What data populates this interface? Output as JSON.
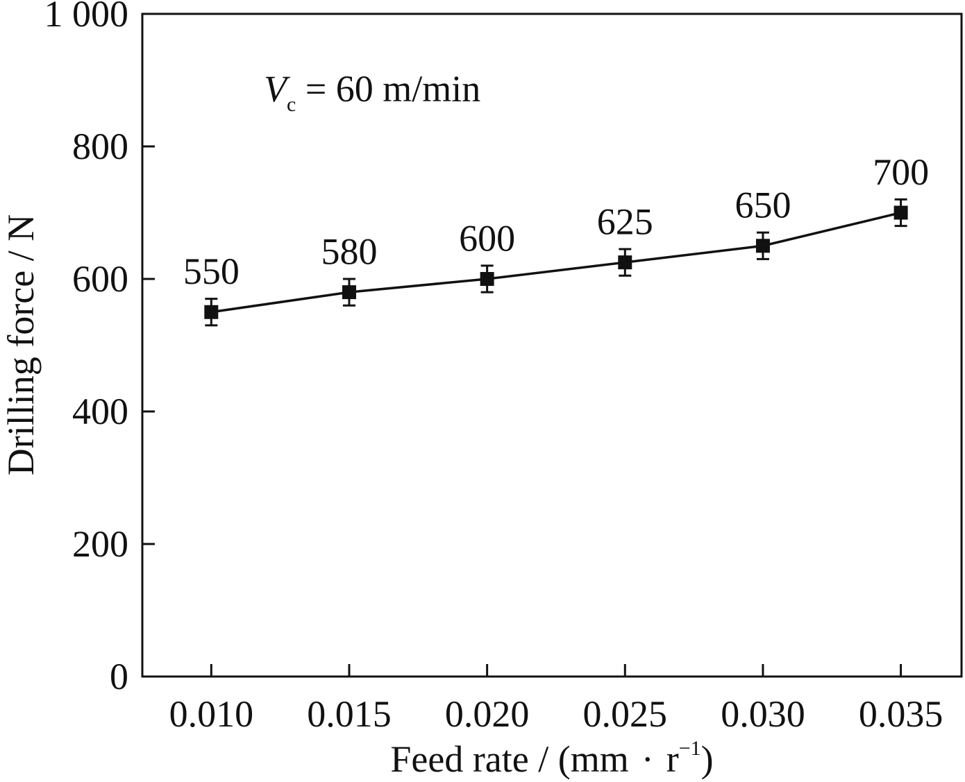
{
  "chart_data": {
    "type": "line",
    "x": [
      0.01,
      0.015,
      0.02,
      0.025,
      0.03,
      0.035
    ],
    "x_tick_labels": [
      "0.010",
      "0.015",
      "0.020",
      "0.025",
      "0.030",
      "0.035"
    ],
    "series": [
      {
        "values": [
          550,
          580,
          600,
          625,
          650,
          700
        ],
        "error": [
          20,
          20,
          20,
          20,
          20,
          20
        ],
        "marker": "square",
        "color": "#111111"
      }
    ],
    "data_labels": [
      "550",
      "580",
      "600",
      "625",
      "650",
      "700"
    ],
    "xlabel_main": "Feed rate / (mm",
    "xlabel_dot": "·",
    "xlabel_unit": "r",
    "xlabel_sup": "−1",
    "xlabel_close": ")",
    "ylabel": "Drilling force / N",
    "xlim": [
      0.0075,
      0.0372
    ],
    "ylim": [
      0,
      1000
    ],
    "y_ticks": [
      0,
      200,
      400,
      600,
      800,
      1000
    ],
    "y_tick_labels": [
      "0",
      "200",
      "400",
      "600",
      "800",
      "1 000"
    ],
    "annotation": {
      "var": "V",
      "sub": "c",
      "text": " = 60 m/min"
    },
    "grid": false,
    "legend": "none"
  }
}
